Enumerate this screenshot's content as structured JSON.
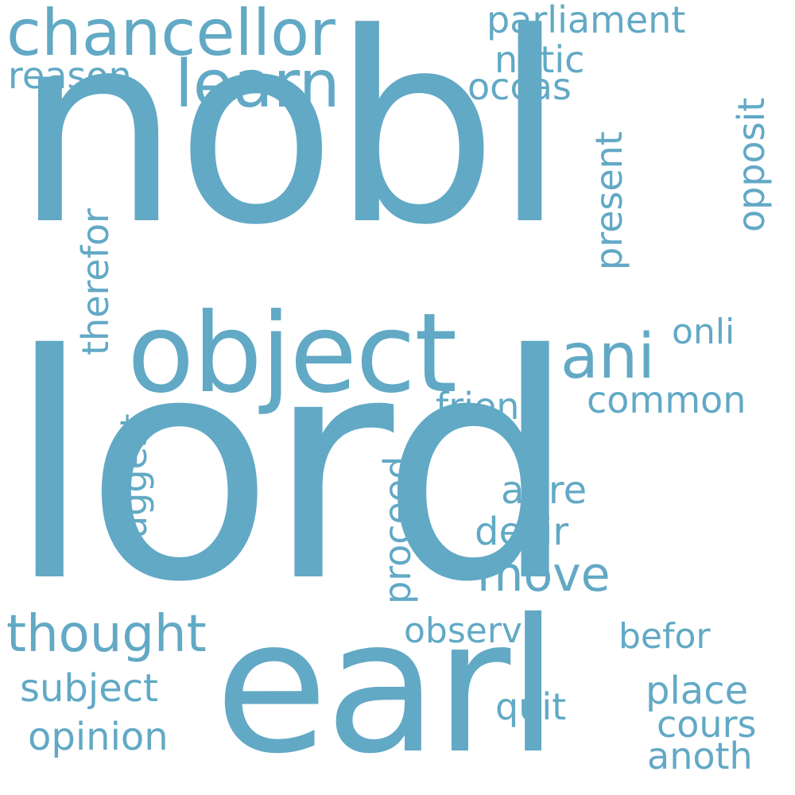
{
  "cloud": {
    "color": "#62a9c5",
    "background": "#ffffff",
    "words": {
      "lord": "lord",
      "nobl": "nobl",
      "earl": "earl",
      "object": "object",
      "chancellor": "chancellor",
      "learn": "learn",
      "ani": "ani",
      "thought": "thought",
      "parliament": "parliament",
      "notic": "notic",
      "occas": "occas",
      "reason": "reason",
      "opposit": "opposit",
      "present": "present",
      "therefor": "therefor",
      "onli": "onli",
      "common": "common",
      "friend": "friend",
      "suggest": "suggest",
      "proceed": "proceed",
      "agre": "agre",
      "desir": "desir",
      "move": "move",
      "observ": "observ",
      "befor": "befor",
      "subject": "subject",
      "place": "place",
      "quit": "quit",
      "cours": "cours",
      "opinion": "opinion",
      "anoth": "anoth"
    }
  }
}
